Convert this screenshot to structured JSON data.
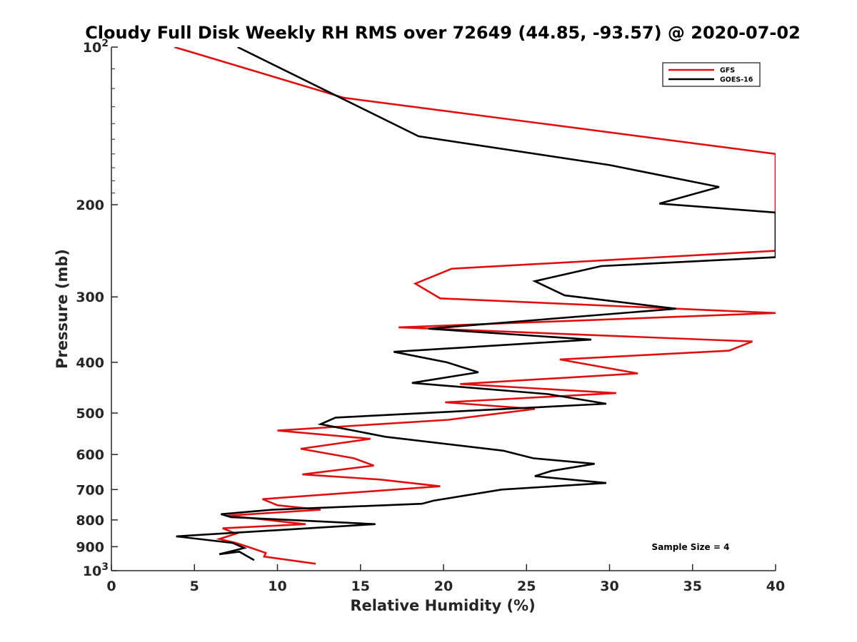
{
  "chart_data": {
    "type": "line",
    "title": "Cloudy Full Disk Weekly RH RMS over 72649 (44.85, -93.57) @ 2020-07-02",
    "xlabel": "Relative Humidity (%)",
    "ylabel": "Pressure (mb)",
    "xlim": [
      0,
      40
    ],
    "ylim": [
      100,
      1000
    ],
    "y_scale": "log",
    "y_reversed": true,
    "x_ticks": [
      "0",
      "5",
      "10",
      "15",
      "20",
      "25",
      "30",
      "35",
      "40"
    ],
    "y_ticks": [
      {
        "value": 100,
        "label": "10",
        "sup": "2"
      },
      {
        "value": 200,
        "label": "200",
        "sup": ""
      },
      {
        "value": 300,
        "label": "300",
        "sup": ""
      },
      {
        "value": 400,
        "label": "400",
        "sup": ""
      },
      {
        "value": 500,
        "label": "500",
        "sup": ""
      },
      {
        "value": 600,
        "label": "600",
        "sup": ""
      },
      {
        "value": 700,
        "label": "700",
        "sup": ""
      },
      {
        "value": 800,
        "label": "800",
        "sup": ""
      },
      {
        "value": 900,
        "label": "900",
        "sup": ""
      },
      {
        "value": 1000,
        "label": "10",
        "sup": "3"
      }
    ],
    "legend_position": "top-right",
    "annotation": "Sample Size = 4",
    "series": [
      {
        "name": "GFS",
        "color": "#e01010",
        "points": [
          [
            3.8,
            100
          ],
          [
            14,
            125
          ],
          [
            40,
            160
          ],
          [
            40,
            245
          ],
          [
            20.5,
            265
          ],
          [
            18.3,
            283
          ],
          [
            19.8,
            302
          ],
          [
            40,
            322
          ],
          [
            17.3,
            343
          ],
          [
            38.6,
            365
          ],
          [
            37.2,
            380
          ],
          [
            27,
            395
          ],
          [
            31.7,
            420
          ],
          [
            21,
            440
          ],
          [
            30.4,
            458
          ],
          [
            20.1,
            477
          ],
          [
            25.5,
            491
          ],
          [
            20.3,
            515
          ],
          [
            10,
            540
          ],
          [
            15.6,
            560
          ],
          [
            11.4,
            585
          ],
          [
            14.6,
            610
          ],
          [
            15.8,
            630
          ],
          [
            11.5,
            655
          ],
          [
            16.2,
            670
          ],
          [
            19.8,
            690
          ],
          [
            9.1,
            730
          ],
          [
            10,
            750
          ],
          [
            12.6,
            765
          ],
          [
            7,
            785
          ],
          [
            11.7,
            815
          ],
          [
            6.7,
            830
          ],
          [
            7.5,
            850
          ],
          [
            6.5,
            870
          ],
          [
            7.5,
            885
          ],
          [
            8.2,
            900
          ],
          [
            9.3,
            925
          ],
          [
            9.2,
            940
          ],
          [
            12.3,
            970
          ]
        ]
      },
      {
        "name": "GOES-16",
        "color": "#000000",
        "points": [
          [
            7.6,
            100
          ],
          [
            18.5,
            148
          ],
          [
            30,
            168
          ],
          [
            36.6,
            185
          ],
          [
            33,
            199
          ],
          [
            40,
            207
          ],
          [
            40,
            252
          ],
          [
            29.5,
            262
          ],
          [
            25.5,
            280
          ],
          [
            27.3,
            298
          ],
          [
            34,
            316
          ],
          [
            19.1,
            345
          ],
          [
            28.9,
            362
          ],
          [
            17,
            382
          ],
          [
            20.2,
            400
          ],
          [
            22.1,
            418
          ],
          [
            18.1,
            438
          ],
          [
            26.3,
            460
          ],
          [
            29.8,
            480
          ],
          [
            13.5,
            510
          ],
          [
            12.6,
            525
          ],
          [
            16.5,
            555
          ],
          [
            23.6,
            590
          ],
          [
            25.4,
            610
          ],
          [
            29.1,
            625
          ],
          [
            26.5,
            645
          ],
          [
            25.5,
            660
          ],
          [
            29.8,
            680
          ],
          [
            23.5,
            700
          ],
          [
            19.4,
            735
          ],
          [
            18.7,
            745
          ],
          [
            9.7,
            765
          ],
          [
            6.6,
            780
          ],
          [
            7.2,
            790
          ],
          [
            15.9,
            815
          ],
          [
            3.9,
            860
          ],
          [
            7.3,
            885
          ],
          [
            8,
            905
          ],
          [
            6.5,
            930
          ],
          [
            7.7,
            920
          ],
          [
            8.6,
            955
          ]
        ]
      }
    ]
  }
}
